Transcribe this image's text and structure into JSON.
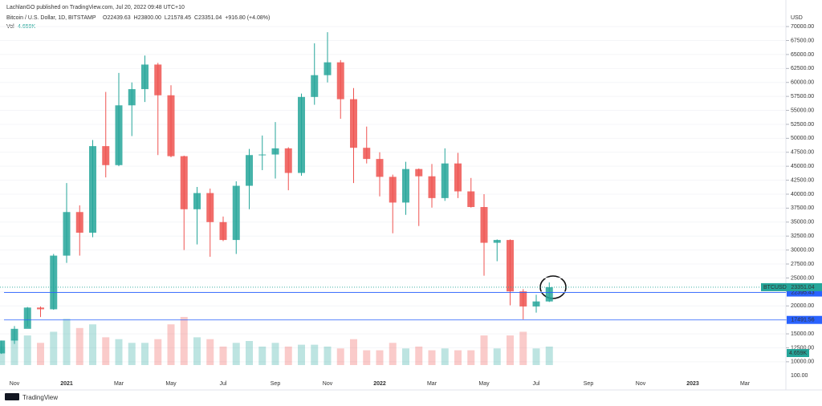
{
  "header": {
    "publisher": "LachlanGO published on TradingView.com, Jul 20, 2022 09:48 UTC+10",
    "symbol": "Bitcoin / U.S. Dollar, 1D, BITSTAMP",
    "ohlc": [
      "O22439.63",
      "H23800.00",
      "L21578.45",
      "C23351.04",
      "+916.80 (+4.08%)"
    ],
    "volume_label": "Vol",
    "volume_value": "4.659K"
  },
  "footer": {
    "brand": "TradingView"
  },
  "chart_data": {
    "type": "candlestick",
    "currency": "USD",
    "categories": [
      null,
      "Nov",
      null,
      null,
      null,
      "2021",
      null,
      null,
      null,
      "Mar",
      null,
      null,
      null,
      "May",
      null,
      null,
      null,
      "Jul",
      null,
      null,
      null,
      "Sep",
      null,
      null,
      null,
      "Nov",
      null,
      null,
      null,
      "2022",
      null,
      null,
      null,
      "Mar",
      null,
      null,
      null,
      "May",
      null,
      null,
      null,
      "Jul",
      null,
      null,
      null,
      "Sep",
      null,
      null,
      null,
      "Nov",
      null,
      null,
      null,
      "2023",
      null,
      null,
      null,
      "Mar",
      null,
      null,
      null
    ],
    "open": [
      11500,
      13800,
      15900,
      19700,
      19400,
      29000,
      36800,
      33100,
      48600,
      45200,
      55900,
      58800,
      63200,
      57700,
      46800,
      37300,
      40200,
      35000,
      31800,
      41500,
      47000,
      47100,
      48200,
      43800,
      57400,
      61300,
      63600,
      57000,
      48300,
      46300,
      43100,
      38500,
      44500,
      43200,
      39300,
      45500,
      40500,
      37700,
      31300,
      31800,
      22600,
      19900,
      20800,
      null,
      null,
      null,
      null,
      null,
      null,
      null,
      null,
      null,
      null,
      null,
      null,
      null,
      null,
      null,
      null,
      null,
      null
    ],
    "high": [
      13800,
      16400,
      19800,
      19900,
      29300,
      42000,
      38000,
      49700,
      58300,
      61700,
      60000,
      64800,
      63500,
      59500,
      46900,
      41300,
      41000,
      36000,
      42300,
      48100,
      50500,
      52900,
      48400,
      58000,
      67000,
      69000,
      64000,
      59000,
      52100,
      47500,
      43500,
      45800,
      44600,
      45400,
      48200,
      47400,
      42900,
      40000,
      31900,
      31900,
      23000,
      22000,
      24200,
      null,
      null,
      null,
      null,
      null,
      null,
      null,
      null,
      null,
      null,
      null,
      null,
      null,
      null,
      null,
      null,
      null,
      null
    ],
    "low": [
      11400,
      13200,
      16300,
      18000,
      19300,
      27700,
      29000,
      32300,
      43000,
      45000,
      50400,
      56500,
      47000,
      46600,
      30000,
      31000,
      28800,
      31600,
      29300,
      37300,
      44300,
      42800,
      40700,
      43300,
      56000,
      60000,
      53500,
      42000,
      45500,
      39600,
      33000,
      36300,
      34300,
      37600,
      38800,
      39300,
      37600,
      25400,
      28000,
      20100,
      17600,
      18800,
      20700,
      null,
      null,
      null,
      null,
      null,
      null,
      null,
      null,
      null,
      null,
      null,
      null,
      null,
      null,
      null,
      null,
      null,
      null
    ],
    "close": [
      13800,
      15900,
      19700,
      19400,
      29000,
      36800,
      33100,
      48600,
      45200,
      55900,
      58800,
      63200,
      57700,
      46800,
      37300,
      40200,
      35000,
      31800,
      41500,
      47000,
      47100,
      48200,
      43800,
      57400,
      61300,
      63600,
      57000,
      48300,
      46300,
      43100,
      38500,
      44500,
      43200,
      39300,
      45500,
      40500,
      37700,
      31300,
      31800,
      22600,
      19900,
      20800,
      23351,
      null,
      null,
      null,
      null,
      null,
      null,
      null,
      null,
      null,
      null,
      null,
      null,
      null,
      null,
      null,
      null,
      null,
      null
    ],
    "volume": [
      10,
      14,
      16,
      12,
      18,
      25,
      20,
      22,
      15,
      14,
      12,
      12,
      14,
      22,
      26,
      15,
      14,
      10,
      12,
      13,
      10,
      12,
      10,
      11,
      11,
      10,
      9,
      14,
      8,
      8,
      12,
      9,
      10,
      8,
      9,
      8,
      8,
      16,
      9,
      16,
      18,
      9,
      10,
      null,
      null,
      null,
      null,
      null,
      null,
      null,
      null,
      null,
      null,
      null,
      null,
      null,
      null,
      null,
      null,
      null,
      null
    ],
    "volume_tick": "100.00",
    "up_color": "#26a69a",
    "down_color": "#ef5350",
    "ylim": [
      5100,
      72600
    ],
    "yticks": [
      {
        "value": 10000,
        "label": "10000.00"
      },
      {
        "value": 12500,
        "label": "12500.00"
      },
      {
        "value": 15000,
        "label": "15000.00"
      },
      {
        "value": 17500,
        "label": "17500.00"
      },
      {
        "value": 20000,
        "label": "20000.00"
      },
      {
        "value": 22500,
        "label": "22500.00"
      },
      {
        "value": 25000,
        "label": "25000.00"
      },
      {
        "value": 27500,
        "label": "27500.00"
      },
      {
        "value": 30000,
        "label": "30000.00"
      },
      {
        "value": 32500,
        "label": "32500.00"
      },
      {
        "value": 35000,
        "label": "35000.00"
      },
      {
        "value": 37500,
        "label": "37500.00"
      },
      {
        "value": 40000,
        "label": "40000.00"
      },
      {
        "value": 42500,
        "label": "42500.00"
      },
      {
        "value": 45000,
        "label": "45000.00"
      },
      {
        "value": 47500,
        "label": "47500.00"
      },
      {
        "value": 50000,
        "label": "50000.00"
      },
      {
        "value": 52500,
        "label": "52500.00"
      },
      {
        "value": 55000,
        "label": "55000.00"
      },
      {
        "value": 57500,
        "label": "57500.00"
      },
      {
        "value": 60000,
        "label": "60000.00"
      },
      {
        "value": 62500,
        "label": "62500.00"
      },
      {
        "value": 65000,
        "label": "65000.00"
      },
      {
        "value": 67500,
        "label": "67500.00"
      },
      {
        "value": 70000,
        "label": "70000.00"
      }
    ],
    "grid": true,
    "hlines": [
      {
        "value": 22395.43,
        "color": "#2962ff"
      },
      {
        "value": 17491.56,
        "color": "#2962ff"
      }
    ],
    "last_price": {
      "name": "BTCUSD",
      "value": 23351.04,
      "color": "#26a69a"
    }
  }
}
